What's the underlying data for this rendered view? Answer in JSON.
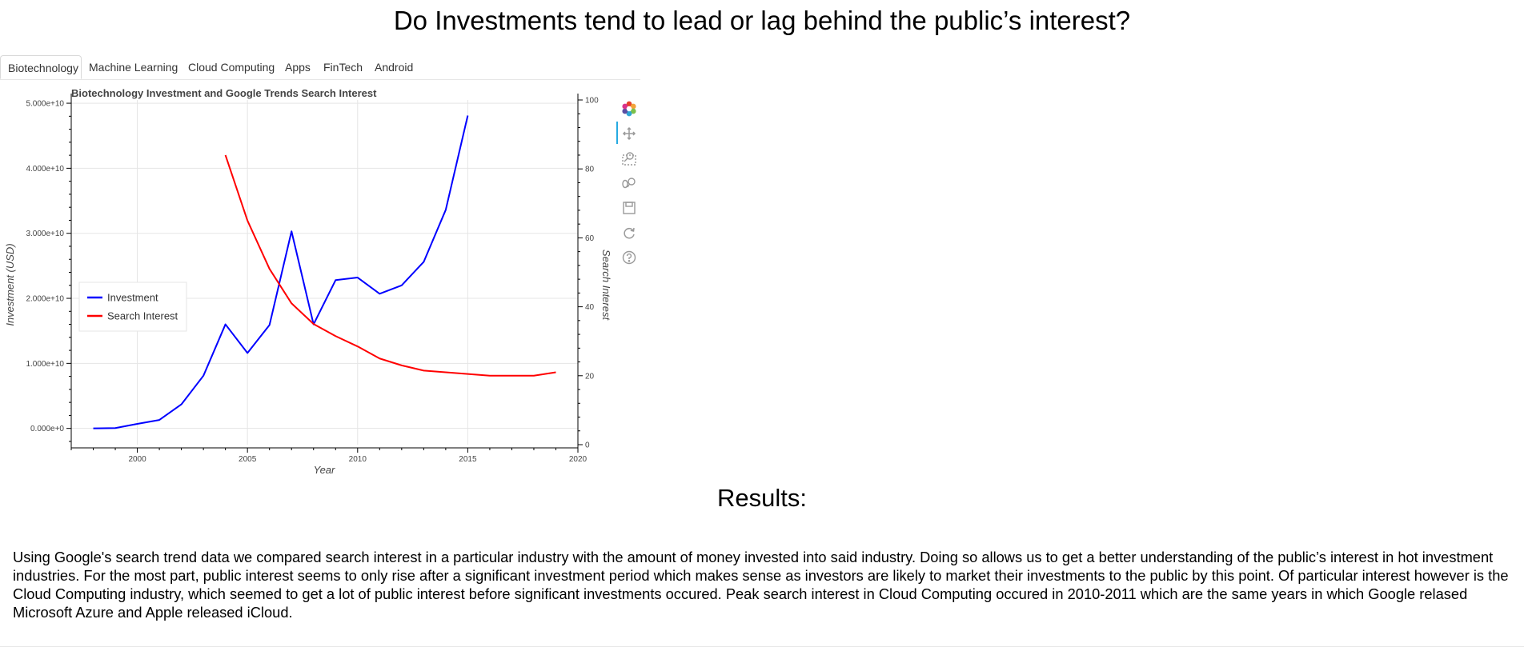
{
  "page": {
    "title": "Do Investments tend to lead or lag behind the public’s interest?",
    "results_heading": "Results:",
    "results_text": "Using Google's search trend data we compared search interest in a particular industry with the amount of money invested into said industry. Doing so allows us to get a better understanding of the public’s interest in hot investment industries. For the most part, public interest seems to only rise after a significant investment period which makes sense as investors are likely to market their investments to the public by this point. Of particular interest however is the Cloud Computing industry, which seemed to get a lot of public interest before significant investments occured. Peak search interest in Cloud Computing occured in 2010-2011 which are the same years in which Google relased Microsoft Azure and Apple released iCloud."
  },
  "tabs": [
    {
      "label": "Biotechnology",
      "active": true
    },
    {
      "label": "Machine Learning",
      "active": false
    },
    {
      "label": "Cloud Computing",
      "active": false
    },
    {
      "label": "Apps",
      "active": false
    },
    {
      "label": "FinTech",
      "active": false
    },
    {
      "label": "Android",
      "active": false
    }
  ],
  "toolbar": [
    {
      "icon": "bokeh-logo-icon"
    },
    {
      "icon": "pan-icon"
    },
    {
      "icon": "box-zoom-icon"
    },
    {
      "icon": "wheel-zoom-icon"
    },
    {
      "icon": "save-icon"
    },
    {
      "icon": "reset-icon"
    },
    {
      "icon": "help-icon"
    }
  ],
  "chart_data": {
    "type": "line",
    "title": "Biotechnology Investment and Google Trends Search Interest",
    "xlabel": "Year",
    "ylabel": "Investment (USD)",
    "y2label": "Search Interest",
    "xlim": [
      1997,
      2020
    ],
    "ylim": [
      -2500000000,
      50500000000
    ],
    "y2lim": [
      0,
      100
    ],
    "x_ticks": [
      2000,
      2005,
      2010,
      2015,
      2020
    ],
    "y_ticks": [
      0,
      10000000000,
      20000000000,
      30000000000,
      40000000000,
      50000000000
    ],
    "y_tick_labels": [
      "0.000e+0",
      "1.000e+10",
      "2.000e+10",
      "3.000e+10",
      "4.000e+10",
      "5.000e+10"
    ],
    "y2_ticks": [
      0,
      20,
      40,
      60,
      80,
      100
    ],
    "grid": true,
    "legend_position": "center-left",
    "series": [
      {
        "name": "Investment",
        "axis": "left",
        "color": "#0000ff",
        "x": [
          1998,
          1999,
          2000,
          2001,
          2002,
          2003,
          2004,
          2005,
          2006,
          2007,
          2008,
          2009,
          2010,
          2011,
          2012,
          2013,
          2014,
          2015
        ],
        "y": [
          0,
          50000000,
          700000000,
          1300000000,
          3700000000,
          8100000000,
          16000000000,
          11600000000,
          15900000000,
          30300000000,
          16000000000,
          22800000000,
          23200000000,
          20700000000,
          22000000000,
          25600000000,
          33600000000,
          48100000000
        ]
      },
      {
        "name": "Search Interest",
        "axis": "right",
        "color": "#ff0000",
        "x": [
          2004,
          2005,
          2006,
          2007,
          2008,
          2009,
          2010,
          2011,
          2012,
          2013,
          2014,
          2015,
          2016,
          2017,
          2018,
          2019
        ],
        "y": [
          84,
          65,
          51,
          41,
          35,
          31.5,
          28.5,
          25,
          23,
          21.5,
          21,
          20.5,
          20,
          20,
          20,
          21
        ]
      }
    ]
  }
}
